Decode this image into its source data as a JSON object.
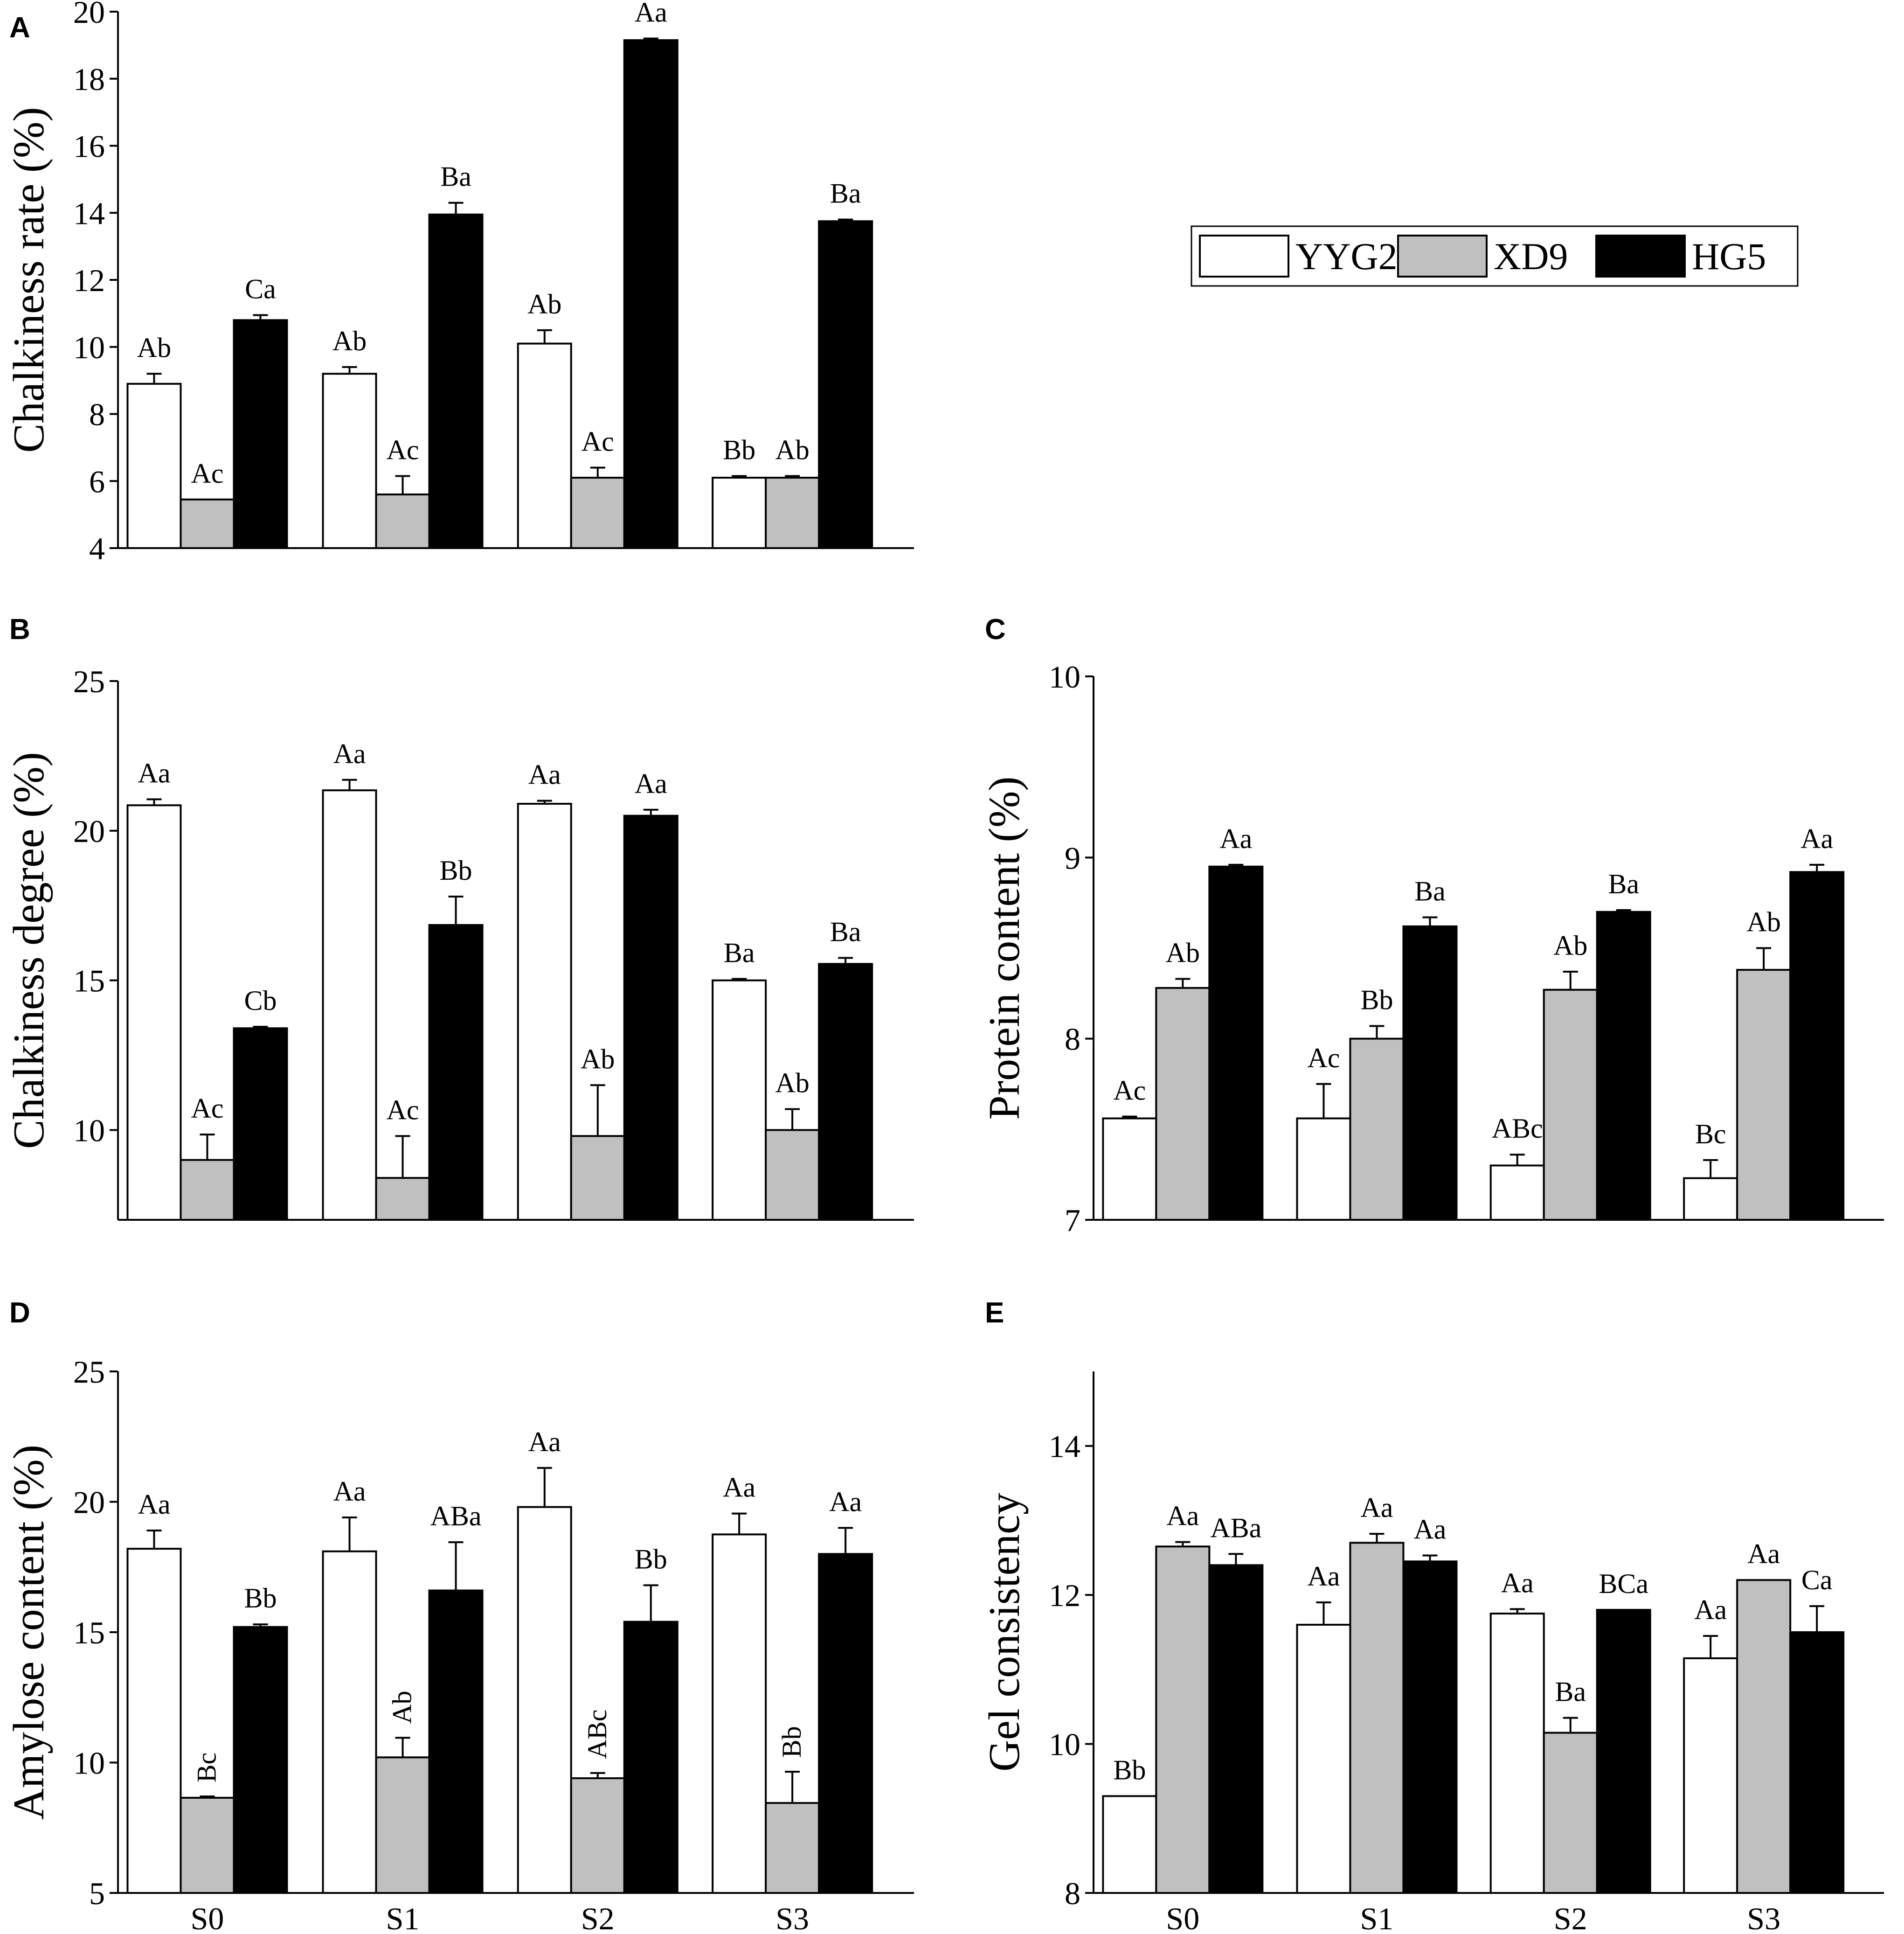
{
  "legend": {
    "entries": [
      {
        "name": "YYG2",
        "color": "#ffffff"
      },
      {
        "name": "XD9",
        "color": "#c0c0c0"
      },
      {
        "name": "HG5",
        "color": "#000000"
      }
    ]
  },
  "chart_data": [
    {
      "type": "bar",
      "panel": "A",
      "ylabel": "Chalkiness rate (%)",
      "ylim": [
        4,
        20
      ],
      "yticks": [
        4,
        6,
        8,
        10,
        12,
        14,
        16,
        18,
        20
      ],
      "categories": [
        "S0",
        "S1",
        "S2",
        "S3"
      ],
      "show_xticks": false,
      "series": [
        {
          "name": "YYG2",
          "color": "#ffffff",
          "values": [
            8.9,
            9.2,
            10.1,
            6.1
          ],
          "errors": [
            0.3,
            0.2,
            0.4,
            0.05
          ],
          "labels": [
            "Ab",
            "Ab",
            "Ab",
            "Bb"
          ]
        },
        {
          "name": "XD9",
          "color": "#c0c0c0",
          "values": [
            5.45,
            5.6,
            6.1,
            6.1
          ],
          "errors": [
            0.0,
            0.55,
            0.3,
            0.05
          ],
          "labels": [
            "Ac",
            "Ac",
            "Ac",
            "Ab"
          ]
        },
        {
          "name": "HG5",
          "color": "#000000",
          "values": [
            10.8,
            13.95,
            19.15,
            13.75
          ],
          "errors": [
            0.15,
            0.35,
            0.05,
            0.05
          ],
          "labels": [
            "Ca",
            "Ba",
            "Aa",
            "Ba"
          ]
        }
      ]
    },
    {
      "type": "bar",
      "panel": "B",
      "ylabel": "Chalkiness degree (%)",
      "ylim": [
        7,
        25
      ],
      "yticks": [
        10,
        15,
        20,
        25
      ],
      "categories": [
        "S0",
        "S1",
        "S2",
        "S3"
      ],
      "show_xticks": false,
      "series": [
        {
          "name": "YYG2",
          "color": "#ffffff",
          "values": [
            20.85,
            21.35,
            20.9,
            15.0
          ],
          "errors": [
            0.2,
            0.35,
            0.1,
            0.05
          ],
          "labels": [
            "Aa",
            "Aa",
            "Aa",
            "Ba"
          ]
        },
        {
          "name": "XD9",
          "color": "#c0c0c0",
          "values": [
            9.0,
            8.4,
            9.8,
            10.0
          ],
          "errors": [
            0.85,
            1.4,
            1.7,
            0.7
          ],
          "labels": [
            "Ac",
            "Ac",
            "Ab",
            "Ab"
          ]
        },
        {
          "name": "HG5",
          "color": "#000000",
          "values": [
            13.4,
            16.85,
            20.5,
            15.55
          ],
          "errors": [
            0.05,
            0.95,
            0.2,
            0.2
          ],
          "labels": [
            "Cb",
            "Bb",
            "Aa",
            "Ba"
          ]
        }
      ]
    },
    {
      "type": "bar",
      "panel": "C",
      "ylabel": "Protein content (%)",
      "ylim": [
        7,
        10
      ],
      "yticks": [
        7,
        8,
        9,
        10
      ],
      "categories": [
        "S0",
        "S1",
        "S2",
        "S3"
      ],
      "show_xticks": false,
      "series": [
        {
          "name": "YYG2",
          "color": "#ffffff",
          "values": [
            7.56,
            7.56,
            7.3,
            7.23
          ],
          "errors": [
            0.01,
            0.19,
            0.06,
            0.1
          ],
          "labels": [
            "Ac",
            "Ac",
            "ABc",
            "Bc"
          ]
        },
        {
          "name": "XD9",
          "color": "#c0c0c0",
          "values": [
            8.28,
            8.0,
            8.27,
            8.38
          ],
          "errors": [
            0.05,
            0.07,
            0.1,
            0.12
          ],
          "labels": [
            "Ab",
            "Bb",
            "Ab",
            "Ab"
          ]
        },
        {
          "name": "HG5",
          "color": "#000000",
          "values": [
            8.95,
            8.62,
            8.7,
            8.92
          ],
          "errors": [
            0.01,
            0.05,
            0.01,
            0.04
          ],
          "labels": [
            "Aa",
            "Ba",
            "Ba",
            "Aa"
          ]
        }
      ]
    },
    {
      "type": "bar",
      "panel": "D",
      "ylabel": "Amylose content (%)",
      "ylim": [
        5,
        25
      ],
      "yticks": [
        5,
        10,
        15,
        20,
        25
      ],
      "categories": [
        "S0",
        "S1",
        "S2",
        "S3"
      ],
      "show_xticks": true,
      "series": [
        {
          "name": "YYG2",
          "color": "#ffffff",
          "values": [
            18.2,
            18.1,
            19.8,
            18.75
          ],
          "errors": [
            0.7,
            1.3,
            1.5,
            0.8
          ],
          "labels": [
            "Aa",
            "Aa",
            "Aa",
            "Aa"
          ]
        },
        {
          "name": "XD9",
          "color": "#c0c0c0",
          "values": [
            8.65,
            10.2,
            9.4,
            8.45
          ],
          "errors": [
            0.05,
            0.75,
            0.2,
            1.2
          ],
          "labels": [
            "Bc",
            "Ab",
            "ABc",
            "Bb"
          ]
        },
        {
          "name": "HG5",
          "color": "#000000",
          "values": [
            15.2,
            16.6,
            15.4,
            18.0
          ],
          "errors": [
            0.1,
            1.85,
            1.4,
            1.0
          ],
          "labels": [
            "Bb",
            "ABa",
            "Bb",
            "Aa"
          ]
        }
      ]
    },
    {
      "type": "bar",
      "panel": "E",
      "ylabel": "Gel consistency",
      "ylim": [
        8,
        15
      ],
      "yticks": [
        8,
        10,
        12,
        14
      ],
      "categories": [
        "S0",
        "S1",
        "S2",
        "S3"
      ],
      "show_xticks": true,
      "series": [
        {
          "name": "YYG2",
          "color": "#ffffff",
          "values": [
            9.3,
            11.6,
            11.75,
            11.15
          ],
          "errors": [
            0.0,
            0.3,
            0.06,
            0.3
          ],
          "labels": [
            "Bb",
            "Aa",
            "Aa",
            "Aa"
          ]
        },
        {
          "name": "XD9",
          "color": "#c0c0c0",
          "values": [
            12.65,
            12.7,
            10.15,
            12.2
          ],
          "errors": [
            0.06,
            0.12,
            0.2,
            0.0
          ],
          "labels": [
            "Aa",
            "Aa",
            "Ba",
            "Aa"
          ]
        },
        {
          "name": "HG5",
          "color": "#000000",
          "values": [
            12.4,
            12.45,
            11.8,
            11.5
          ],
          "errors": [
            0.15,
            0.08,
            0.0,
            0.35
          ],
          "labels": [
            "ABa",
            "Aa",
            "BCa",
            "Ca"
          ]
        }
      ]
    }
  ]
}
